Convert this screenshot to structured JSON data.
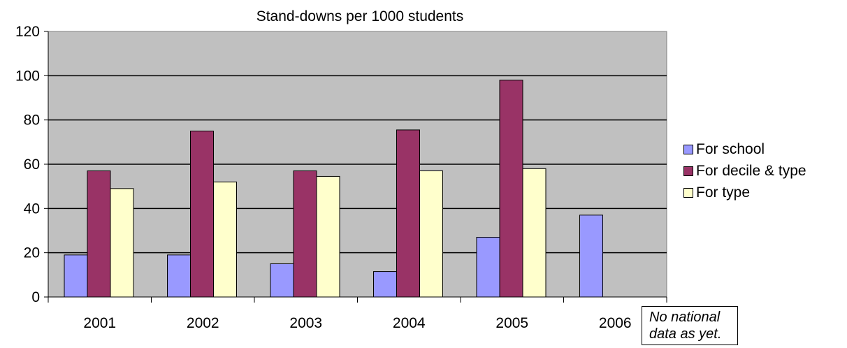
{
  "chart_data": {
    "type": "bar",
    "title": "Stand-downs per 1000 students",
    "xlabel": "",
    "ylabel": "",
    "categories": [
      "2001",
      "2002",
      "2003",
      "2004",
      "2005",
      "2006"
    ],
    "series": [
      {
        "name": "For school",
        "values": [
          19,
          19,
          15,
          11.5,
          27,
          37
        ],
        "color": "#9999ff"
      },
      {
        "name": "For decile & type",
        "values": [
          57,
          75,
          57,
          75.5,
          98,
          null
        ],
        "color": "#993366"
      },
      {
        "name": "For type",
        "values": [
          49,
          52,
          54.5,
          57,
          58,
          null
        ],
        "color": "#ffffcc"
      }
    ],
    "ylim": [
      0,
      120
    ],
    "yticks": [
      "0",
      "20",
      "40",
      "60",
      "80",
      "100",
      "120"
    ],
    "grid": true,
    "plot_background": "#c0c0c0",
    "legend_position": "right",
    "annotation": "No national data as yet."
  }
}
